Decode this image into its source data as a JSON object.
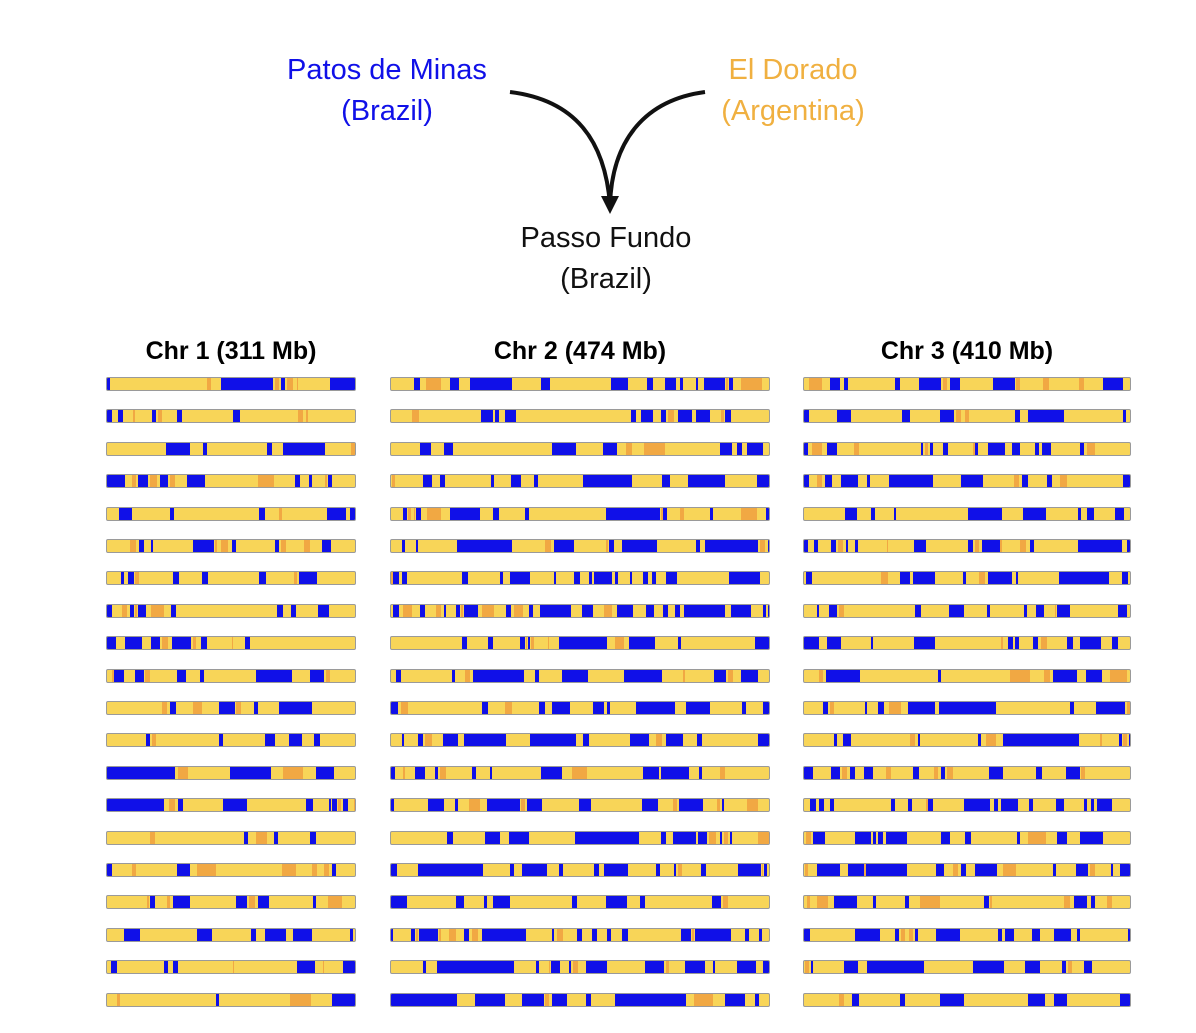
{
  "cross": {
    "parent1": {
      "name": "Patos de Minas",
      "country": "(Brazil)",
      "color": "#1010e8"
    },
    "parent2": {
      "name": "El Dorado",
      "country": "(Argentina)",
      "color": "#f0b040"
    },
    "offspring": {
      "name": "Passo Fundo",
      "country": "(Brazil)",
      "color": "#111111"
    }
  },
  "chromosomes": [
    {
      "title": "Chr 1 (311 Mb)"
    },
    {
      "title": "Chr 2 (474 Mb)"
    },
    {
      "title": "Chr 3 (410 Mb)"
    }
  ],
  "haplotype_panel": {
    "rows_per_chromosome": 20,
    "colors": {
      "patos_de_minas": "#1010e8",
      "el_dorado": "#f8d558",
      "heterozygous": "#f0a040"
    }
  }
}
